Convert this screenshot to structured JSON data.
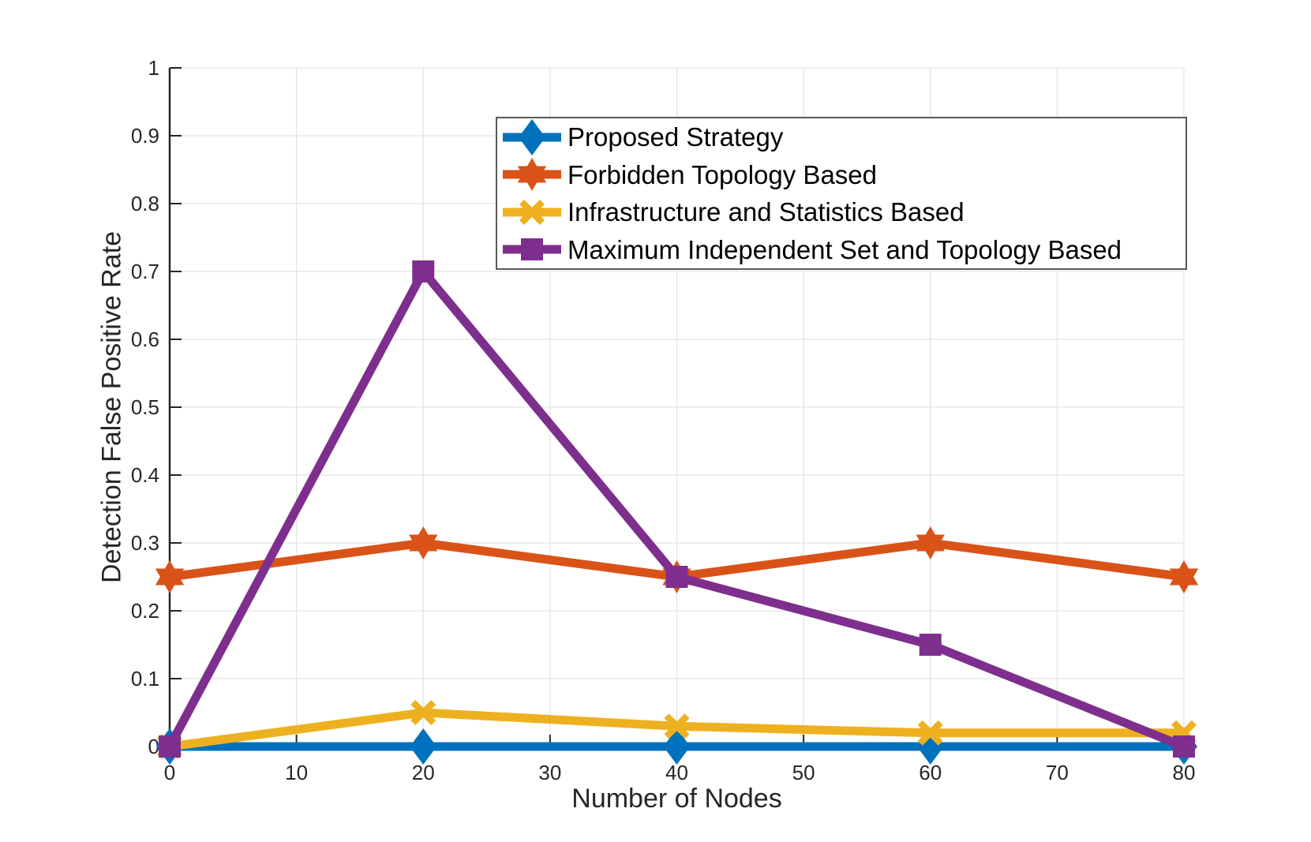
{
  "chart_data": {
    "type": "line",
    "title": "",
    "xlabel": "Number of Nodes",
    "ylabel": "Detection False Positive Rate",
    "xlim": [
      0,
      80
    ],
    "ylim": [
      0,
      1
    ],
    "xticks": [
      0,
      10,
      20,
      30,
      40,
      50,
      60,
      70,
      80
    ],
    "yticks": [
      0,
      0.1,
      0.2,
      0.3,
      0.4,
      0.5,
      0.6,
      0.7,
      0.8,
      0.9,
      1
    ],
    "grid": true,
    "legend_position": "inside upper right",
    "x": [
      0,
      20,
      40,
      60,
      80
    ],
    "series": [
      {
        "name": "Proposed Strategy",
        "color": "#0072BD",
        "marker": "diamond",
        "values": [
          0,
          0,
          0,
          0,
          0
        ]
      },
      {
        "name": "Forbidden Topology Based",
        "color": "#D95319",
        "marker": "hexagram",
        "values": [
          0.25,
          0.3,
          0.25,
          0.3,
          0.25
        ]
      },
      {
        "name": "Infrastructure and Statistics Based",
        "color": "#EDB120",
        "marker": "x",
        "values": [
          0,
          0.05,
          0.03,
          0.02,
          0.02
        ]
      },
      {
        "name": "Maximum Independent Set and Topology Based",
        "color": "#7E2F8E",
        "marker": "square",
        "values": [
          0,
          0.7,
          0.25,
          0.15,
          0
        ]
      }
    ],
    "style": {
      "grid_color": "#e4e4e4",
      "axis_color": "#262626",
      "legend_border_color": "#595959",
      "background": "#ffffff",
      "line_width": 11
    }
  }
}
